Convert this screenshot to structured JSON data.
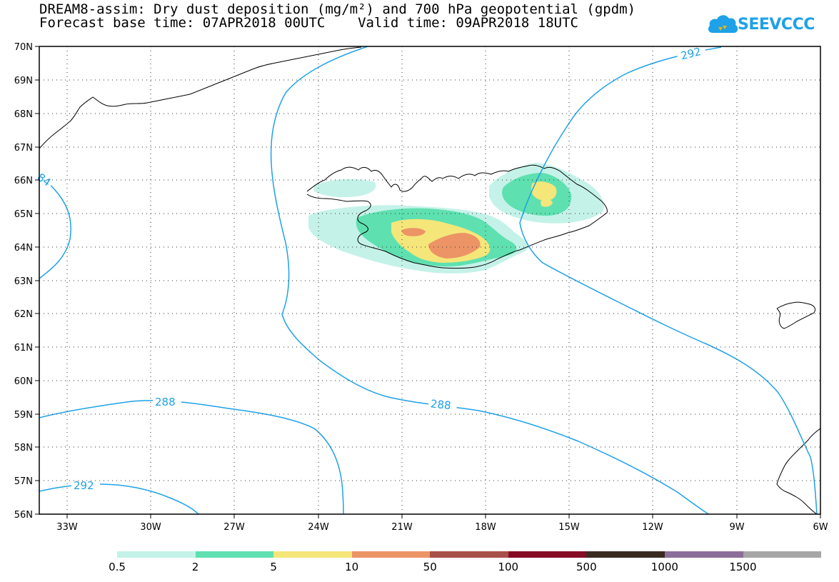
{
  "title": {
    "line1": "DREAM8-assim: Dry dust deposition (mg/m²) and 700 hPa geopotential (gpdm)",
    "line2": "Forecast base time: 07APR2018 00UTC    Valid time: 09APR2018 18UTC"
  },
  "logo": {
    "text": "SEEVCCC",
    "icon": "cloud-icon",
    "color": "#1ea1e8"
  },
  "map": {
    "lon_range": [
      -34.0,
      -6.0
    ],
    "lat_range": [
      56.0,
      70.0
    ],
    "lon_ticks": [
      "33W",
      "30W",
      "27W",
      "24W",
      "21W",
      "18W",
      "15W",
      "12W",
      "9W",
      "6W"
    ],
    "lat_ticks": [
      "56N",
      "57N",
      "58N",
      "59N",
      "60N",
      "61N",
      "62N",
      "63N",
      "64N",
      "65N",
      "66N",
      "67N",
      "68N",
      "69N",
      "70N"
    ],
    "grid": "dotted",
    "contour_color": "#1ea1e8",
    "contour_labels": [
      "292",
      "84",
      "288",
      "288",
      "292"
    ]
  },
  "colorbar": {
    "colors": [
      "#c4f2e8",
      "#5ee0b0",
      "#f5e67a",
      "#ec9466",
      "#a8504a",
      "#870a24",
      "#3a2a20",
      "#8c6e9a",
      "#a6a6a6"
    ],
    "labels": [
      "0.5",
      "2",
      "5",
      "10",
      "50",
      "100",
      "500",
      "1000",
      "1500"
    ]
  }
}
